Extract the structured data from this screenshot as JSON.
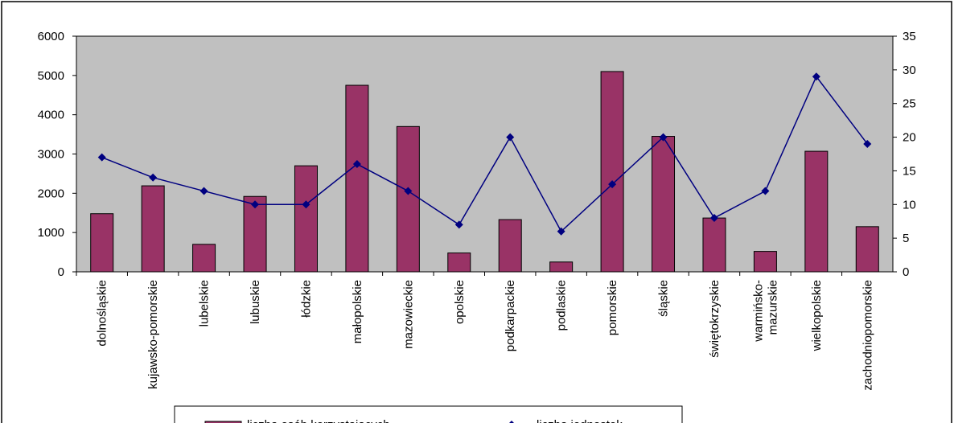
{
  "chart_data": {
    "type": "bar_line",
    "categories": [
      "dolnośląskie",
      "kujawsko-pomorskie",
      "lubelskie",
      "lubuskie",
      "łódzkie",
      "małopolskie",
      "mazowieckie",
      "opolskie",
      "podkarpackie",
      "podlaskie",
      "pomorskie",
      "śląskie",
      "świętokrzyskie",
      "warmińsko-\nmazurskie",
      "wielkopolskie",
      "zachodniopomorskie"
    ],
    "series": [
      {
        "name": "liczba osób korzystających",
        "color": "#993366",
        "type": "bar",
        "values": [
          1480,
          2190,
          700,
          1920,
          2700,
          4750,
          3700,
          480,
          1330,
          250,
          5100,
          3450,
          1370,
          520,
          3070,
          1150
        ]
      },
      {
        "name": "liczba jednostek",
        "color": "#000080",
        "type": "line",
        "axis": "y2",
        "values": [
          17,
          14,
          12,
          10,
          10,
          16,
          12,
          7,
          20,
          6,
          13,
          20,
          8,
          12,
          29,
          19
        ]
      }
    ],
    "ylim": [
      0,
      6000
    ],
    "yticks": [
      0,
      1000,
      2000,
      3000,
      4000,
      5000,
      6000
    ],
    "y2lim": [
      0,
      35
    ],
    "y2ticks": [
      0,
      5,
      10,
      15,
      20,
      25,
      30,
      35
    ],
    "plot_background": "#c0c0c0",
    "legend": "bottom"
  }
}
